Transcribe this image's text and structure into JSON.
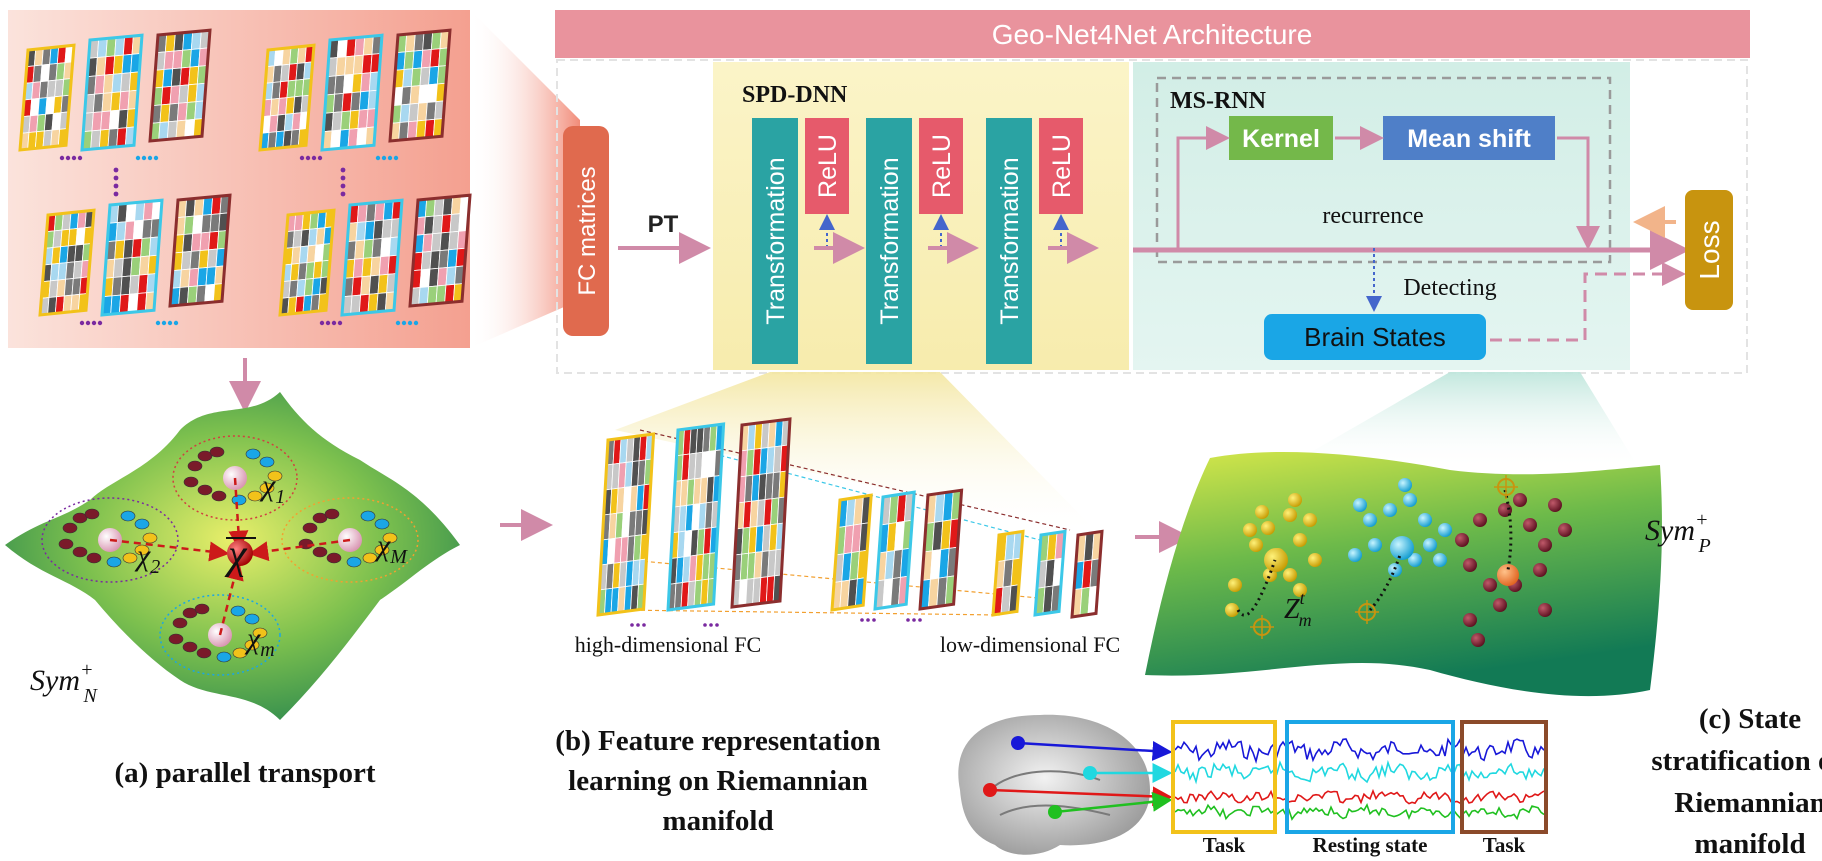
{
  "title": "Geo-Net4Net Architecture",
  "fc_matrices_label": "FC matrices",
  "pt_label": "PT",
  "spd_dnn": {
    "title": "SPD-DNN",
    "transformation_label": "Transformation",
    "relu_label": "ReLU"
  },
  "ms_rnn": {
    "title": "MS-RNN",
    "kernel_label": "Kernel",
    "mean_shift_label": "Mean shift",
    "recurrence_label": "recurrence",
    "detecting_label": "Detecting",
    "brain_states_label": "Brain States"
  },
  "loss_label": "Loss",
  "manifold_a": {
    "sym_label": "Sym",
    "sym_sup": "+",
    "sym_sub": "N",
    "chi_1": "1",
    "chi_2": "2",
    "chi_M": "M",
    "chi_m": "m",
    "chi_symbol": "χ"
  },
  "manifold_c": {
    "sym_label": "Sym",
    "sym_sup": "+",
    "sym_sub": "P",
    "z_label": "Z",
    "z_sup": "t",
    "z_sub": "m"
  },
  "high_dim_label": "high-dimensional FC",
  "low_dim_label": "low-dimensional FC",
  "caption_a": "(a) parallel transport",
  "caption_b": [
    "(b) Feature representation",
    "learning on Riemannian",
    "manifold"
  ],
  "caption_c": [
    "(c) State",
    "stratification on",
    "Riemannian",
    "manifold"
  ],
  "timeseries_labels": [
    "Task",
    "Resting state",
    "Task"
  ],
  "colors": {
    "title_bar": "#e9939d",
    "fc_box": "#e06a4e",
    "transformation": "#2aa3a3",
    "relu": "#e65a6b",
    "kernel": "#74b84a",
    "mean_shift": "#4f7fc8",
    "brain_states": "#1aa6e6",
    "loss": "#c8940f",
    "arrow": "#d08aa8",
    "yellow_frame": "#f2c21a",
    "cyan_frame": "#3cc8e8",
    "brown_frame": "#8b2e2e"
  }
}
